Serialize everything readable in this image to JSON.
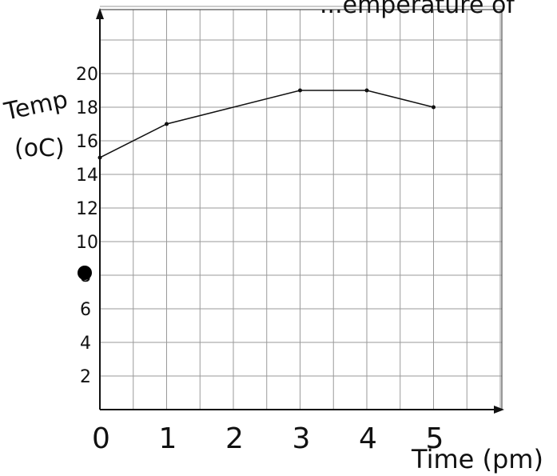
{
  "chart_data": {
    "type": "line",
    "title": "...emperature of",
    "xlabel": "Time (pm)",
    "ylabel_line1": "Temp",
    "ylabel_line2": "(oC)",
    "x": [
      0,
      1,
      3,
      4,
      5
    ],
    "y": [
      15,
      17,
      19,
      19,
      18
    ],
    "x_ticks": [
      "0",
      "1",
      "2",
      "3",
      "4",
      "5"
    ],
    "y_ticks": [
      "2",
      "4",
      "6",
      "8",
      "10",
      "12",
      "14",
      "16",
      "18",
      "20"
    ],
    "xlim": [
      0,
      6
    ],
    "ylim": [
      0,
      24
    ],
    "grid": true,
    "annotation": "8"
  }
}
